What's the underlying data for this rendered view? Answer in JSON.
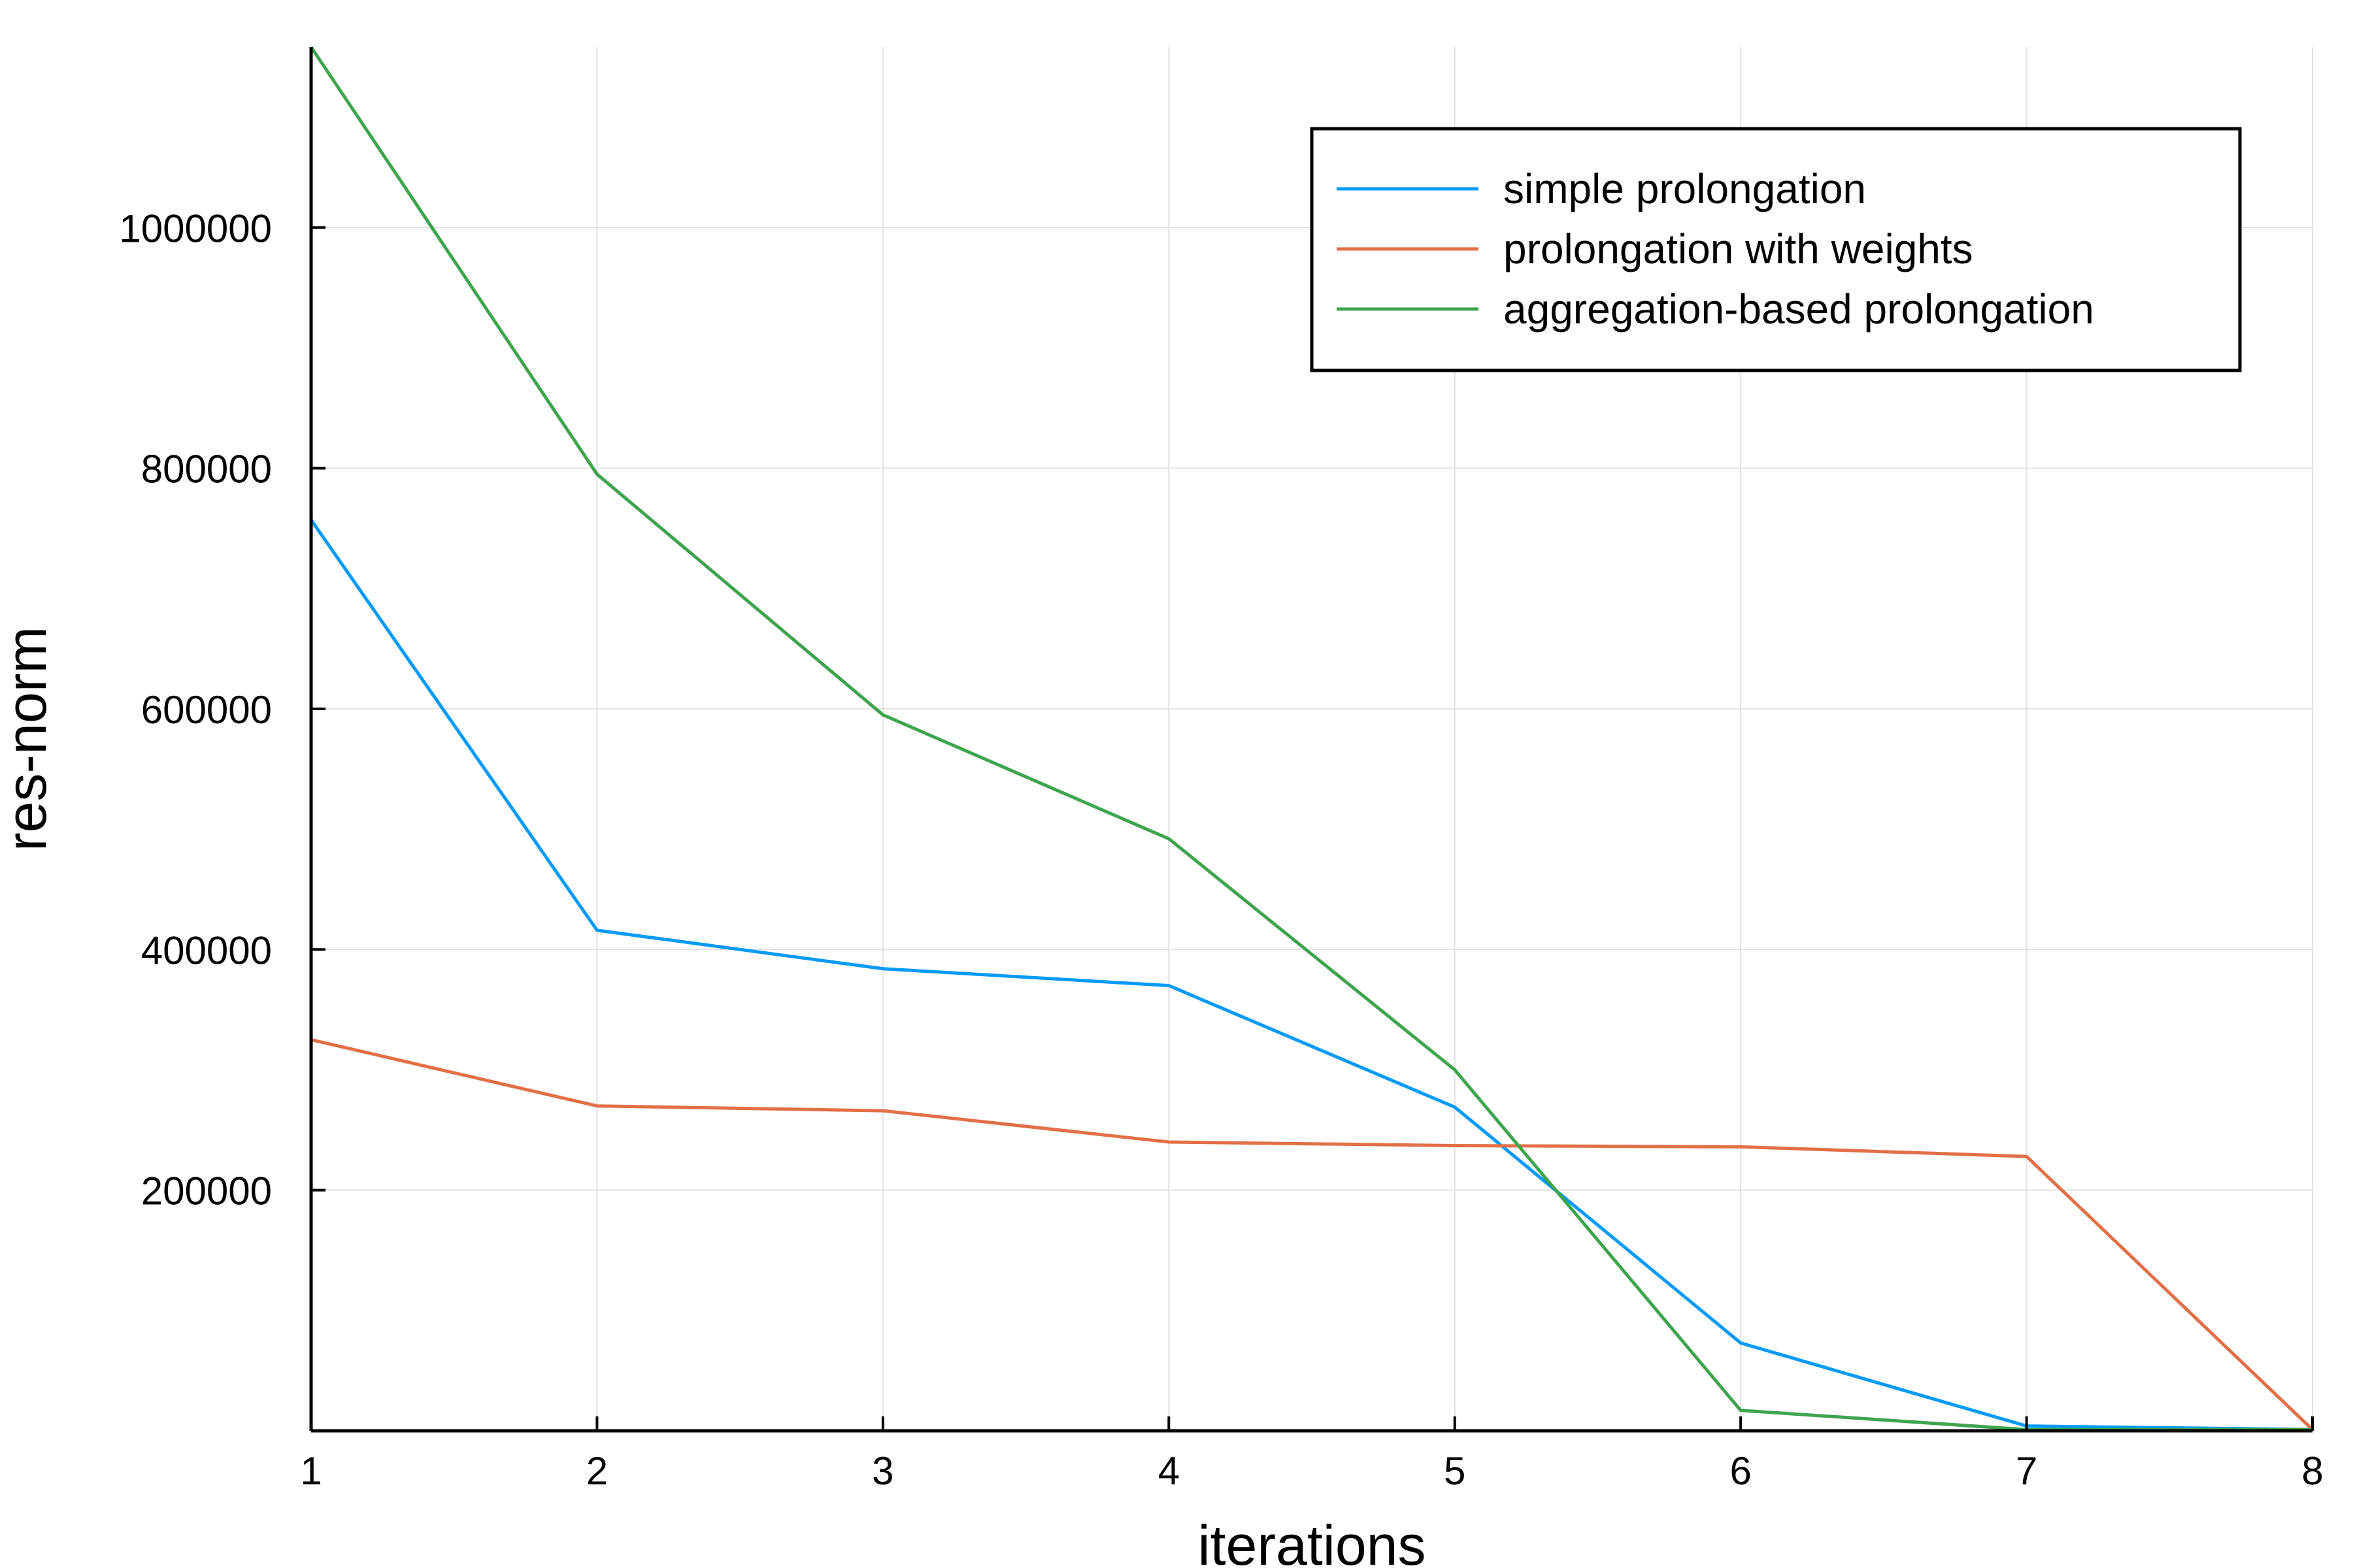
{
  "chart_data": {
    "type": "line",
    "xlabel": "iterations",
    "ylabel": "res-norm",
    "xlim": [
      1,
      8
    ],
    "ylim": [
      0,
      1150000
    ],
    "x": [
      1,
      2,
      3,
      4,
      5,
      6,
      7,
      8
    ],
    "x_ticks": [
      1,
      2,
      3,
      4,
      5,
      6,
      7,
      8
    ],
    "y_ticks": [
      200000,
      400000,
      600000,
      800000,
      1000000
    ],
    "grid": true,
    "legend_position": "top-right",
    "series": [
      {
        "name": "simple prolongation",
        "color": "#009AFA",
        "values": [
          757000,
          416000,
          384000,
          370000,
          269000,
          73000,
          4000,
          1000
        ]
      },
      {
        "name": "prolongation with weights",
        "color": "#E26F46",
        "values": [
          325000,
          270000,
          266000,
          240000,
          237000,
          236000,
          228000,
          1000
        ]
      },
      {
        "name": "aggregation-based prolongation",
        "color": "#3EA44E",
        "values": [
          1150000,
          795000,
          595000,
          492000,
          300000,
          17000,
          1000,
          1000
        ]
      }
    ]
  }
}
